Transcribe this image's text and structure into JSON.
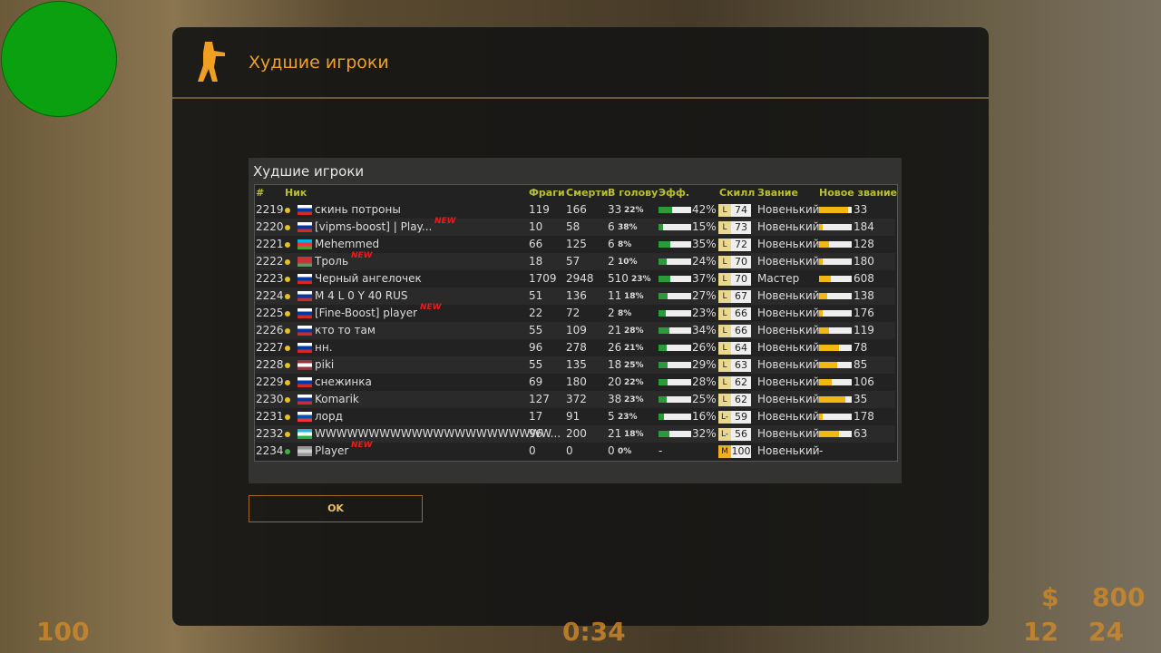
{
  "window": {
    "title": "Худшие игроки",
    "button": "OK"
  },
  "table": {
    "title": "Худшие игроки",
    "columns": [
      "#",
      "Ник",
      "Фраги",
      "Смерти",
      "В голову",
      "Эфф.",
      "Скилл",
      "Звание",
      "Новое звание"
    ],
    "rows": [
      {
        "rank": "2219",
        "status": "#e8c020",
        "flag": "ru",
        "name": "скинь потроны",
        "frags": "119",
        "deaths": "166",
        "hs": "33",
        "hs_pct": "22%",
        "eff": {
          "value": 42,
          "label": "42%"
        },
        "grade": "L",
        "skill": "74",
        "title": "Новенький",
        "progress": 90,
        "points": "33"
      },
      {
        "rank": "2220",
        "status": "#e8c020",
        "flag": "ru",
        "name": "[vipms-boost] | Play...",
        "badge": "NEW",
        "frags": "10",
        "deaths": "58",
        "hs": "6",
        "hs_pct": "38%",
        "eff": {
          "value": 15,
          "label": "15%"
        },
        "grade": "L",
        "skill": "73",
        "title": "Новенький",
        "progress": 10,
        "points": "184"
      },
      {
        "rank": "2221",
        "status": "#e8c020",
        "flag": "az",
        "name": "Mehemmed",
        "frags": "66",
        "deaths": "125",
        "hs": "6",
        "hs_pct": "8%",
        "eff": {
          "value": 35,
          "label": "35%"
        },
        "grade": "L",
        "skill": "72",
        "title": "Новенький",
        "progress": 30,
        "points": "128"
      },
      {
        "rank": "2222",
        "status": "#e8c020",
        "flag": "by",
        "name": "Троль",
        "badge": "NEW",
        "frags": "18",
        "deaths": "57",
        "hs": "2",
        "hs_pct": "10%",
        "eff": {
          "value": 24,
          "label": "24%"
        },
        "grade": "L",
        "skill": "70",
        "title": "Новенький",
        "progress": 10,
        "points": "180"
      },
      {
        "rank": "2223",
        "status": "#e8c020",
        "flag": "ru",
        "name": "Черный ангелочек",
        "frags": "1709",
        "deaths": "2948",
        "hs": "510",
        "hs_pct": "23%",
        "eff": {
          "value": 37,
          "label": "37%"
        },
        "grade": "L",
        "skill": "70",
        "title": "Мастер",
        "progress": 35,
        "points": "608"
      },
      {
        "rank": "2224",
        "status": "#e8c020",
        "flag": "ru",
        "name": "M 4 L 0 Y 40 RUS",
        "frags": "51",
        "deaths": "136",
        "hs": "11",
        "hs_pct": "18%",
        "eff": {
          "value": 27,
          "label": "27%"
        },
        "grade": "L",
        "skill": "67",
        "title": "Новенький",
        "progress": 25,
        "points": "138"
      },
      {
        "rank": "2225",
        "status": "#e8c020",
        "flag": "ru",
        "name": "[Fine-Boost] player",
        "badge": "NEW",
        "frags": "22",
        "deaths": "72",
        "hs": "2",
        "hs_pct": "8%",
        "eff": {
          "value": 23,
          "label": "23%"
        },
        "grade": "L",
        "skill": "66",
        "title": "Новенький",
        "progress": 10,
        "points": "176"
      },
      {
        "rank": "2226",
        "status": "#e8c020",
        "flag": "ru",
        "name": "кто то там",
        "frags": "55",
        "deaths": "109",
        "hs": "21",
        "hs_pct": "28%",
        "eff": {
          "value": 34,
          "label": "34%"
        },
        "grade": "L",
        "skill": "66",
        "title": "Новенький",
        "progress": 30,
        "points": "119"
      },
      {
        "rank": "2227",
        "status": "#e8c020",
        "flag": "ru",
        "name": "нн.",
        "frags": "96",
        "deaths": "278",
        "hs": "26",
        "hs_pct": "21%",
        "eff": {
          "value": 26,
          "label": "26%"
        },
        "grade": "L",
        "skill": "64",
        "title": "Новенький",
        "progress": 60,
        "points": "78"
      },
      {
        "rank": "2228",
        "status": "#e8c020",
        "flag": "lv",
        "name": "piki",
        "frags": "55",
        "deaths": "135",
        "hs": "18",
        "hs_pct": "25%",
        "eff": {
          "value": 29,
          "label": "29%"
        },
        "grade": "L",
        "skill": "63",
        "title": "Новенький",
        "progress": 55,
        "points": "85"
      },
      {
        "rank": "2229",
        "status": "#e8c020",
        "flag": "ru",
        "name": "снежинка",
        "frags": "69",
        "deaths": "180",
        "hs": "20",
        "hs_pct": "22%",
        "eff": {
          "value": 28,
          "label": "28%"
        },
        "grade": "L",
        "skill": "62",
        "title": "Новенький",
        "progress": 40,
        "points": "106"
      },
      {
        "rank": "2230",
        "status": "#e8c020",
        "flag": "ru",
        "name": "Komarik",
        "frags": "127",
        "deaths": "372",
        "hs": "38",
        "hs_pct": "23%",
        "eff": {
          "value": 25,
          "label": "25%"
        },
        "grade": "L",
        "skill": "62",
        "title": "Новенький",
        "progress": 80,
        "points": "35"
      },
      {
        "rank": "2231",
        "status": "#e8c020",
        "flag": "si",
        "name": "лорд",
        "frags": "17",
        "deaths": "91",
        "hs": "5",
        "hs_pct": "23%",
        "eff": {
          "value": 16,
          "label": "16%"
        },
        "grade": "L-",
        "skill": "59",
        "title": "Новенький",
        "progress": 10,
        "points": "178"
      },
      {
        "rank": "2232",
        "status": "#e8c020",
        "flag": "uz",
        "name": "WWWWWWWWWWWWWWWWWWWWWW...",
        "frags": "96",
        "deaths": "200",
        "hs": "21",
        "hs_pct": "18%",
        "eff": {
          "value": 32,
          "label": "32%"
        },
        "grade": "L-",
        "skill": "56",
        "title": "Новенький",
        "progress": 60,
        "points": "63"
      },
      {
        "rank": "2234",
        "status": "#3cb040",
        "flag": "unknown",
        "name": "Player",
        "badge": "NEW",
        "frags": "0",
        "deaths": "0",
        "hs": "0",
        "hs_pct": "0%",
        "eff": {
          "label": "-"
        },
        "grade": "M",
        "skill": "100",
        "title": "Новенький",
        "points": "-"
      }
    ]
  },
  "hud": {
    "health": "100",
    "time": "0:34",
    "money_sign": "$",
    "money": "800",
    "clip": "12",
    "reserve": "24"
  }
}
